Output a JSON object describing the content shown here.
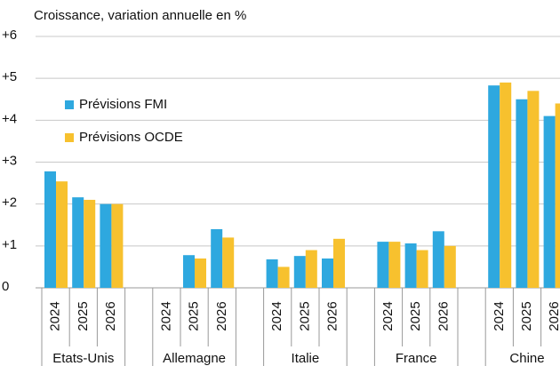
{
  "chart_data": {
    "type": "bar",
    "title": "Croissance, variation annuelle en %",
    "groups": [
      "Etats-Unis",
      "Allemagne",
      "Italie",
      "France",
      "Chine"
    ],
    "categories": [
      "2024",
      "2025",
      "2026",
      "2024",
      "2025",
      "2026",
      "2024",
      "2025",
      "2026",
      "2024",
      "2025",
      "2026",
      "2024",
      "2025",
      "2026"
    ],
    "series": [
      {
        "name": "Prévisions FMI",
        "color": "#2ea8df",
        "values": [
          2.78,
          2.16,
          2.0,
          null,
          0.78,
          1.4,
          0.68,
          0.76,
          0.7,
          1.1,
          1.06,
          1.35,
          4.83,
          4.5,
          4.1
        ]
      },
      {
        "name": "Prévisions OCDE",
        "color": "#f7c12e",
        "values": [
          2.54,
          2.1,
          2.0,
          null,
          0.7,
          1.2,
          0.5,
          0.9,
          1.17,
          1.1,
          0.9,
          1.0,
          4.9,
          4.7,
          4.4
        ]
      }
    ],
    "ylim": [
      0,
      6
    ],
    "yticks": [
      0,
      {
        "value": 1,
        "label": "+1"
      },
      {
        "value": 2,
        "label": "+2"
      },
      {
        "value": 3,
        "label": "+3"
      },
      {
        "value": 4,
        "label": "+4"
      },
      {
        "value": 5,
        "label": "+5"
      },
      {
        "value": 6,
        "label": "+6"
      }
    ],
    "grid": true,
    "legend": "upper left"
  }
}
